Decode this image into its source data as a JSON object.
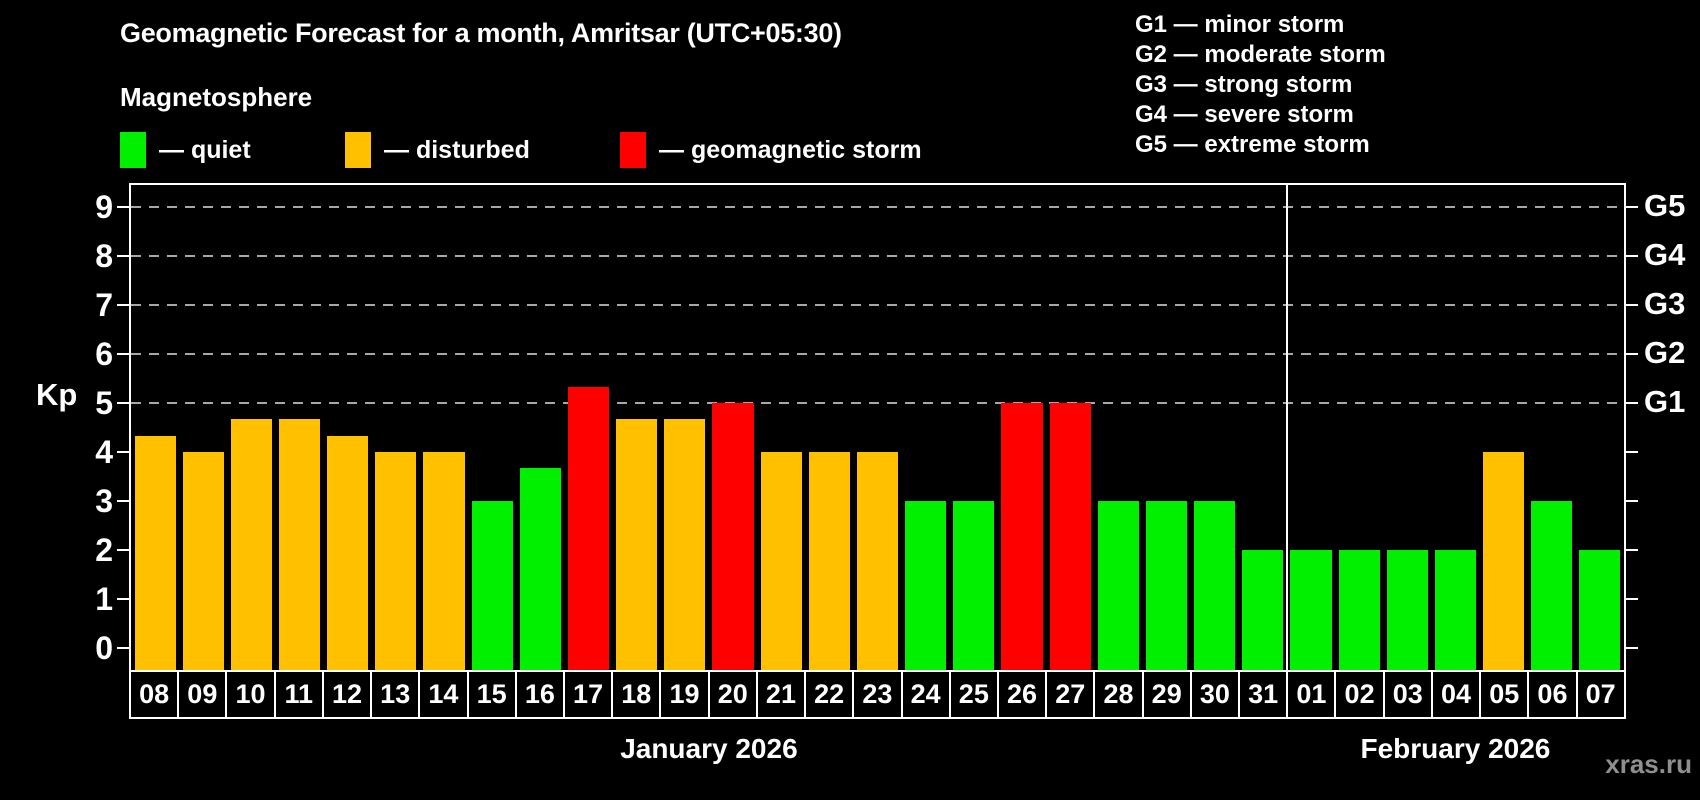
{
  "title": "Geomagnetic Forecast for a month, Amritsar (UTC+05:30)",
  "subtitle": "Magnetosphere",
  "legend": {
    "items": [
      {
        "name": "quiet",
        "label": "— quiet",
        "color": "#00F000"
      },
      {
        "name": "disturbed",
        "label": "— disturbed",
        "color": "#FFC000"
      },
      {
        "name": "geomagnetic-storm",
        "label": "— geomagnetic storm",
        "color": "#FF0000"
      }
    ]
  },
  "g_scale_legend": {
    "items": [
      {
        "label": "G1 — minor storm"
      },
      {
        "label": "G2 — moderate storm"
      },
      {
        "label": "G3 — strong storm"
      },
      {
        "label": "G4 — severe storm"
      },
      {
        "label": "G5 — extreme storm"
      }
    ]
  },
  "watermark": "xras.ru",
  "chart_data": {
    "type": "bar",
    "title": "Geomagnetic Forecast for a month, Amritsar (UTC+05:30)",
    "ylabel": "Kp",
    "ylim": [
      0,
      9.45
    ],
    "yticks": [
      0,
      1,
      2,
      3,
      4,
      5,
      6,
      7,
      8,
      9
    ],
    "grid_levels": [
      5,
      6,
      7,
      8,
      9
    ],
    "grid_style": "dashed",
    "right_axis_labels": [
      {
        "value": 5,
        "label": "G1"
      },
      {
        "value": 6,
        "label": "G2"
      },
      {
        "value": 7,
        "label": "G3"
      },
      {
        "value": 8,
        "label": "G4"
      },
      {
        "value": 9,
        "label": "G5"
      }
    ],
    "categories": [
      "08",
      "09",
      "10",
      "11",
      "12",
      "13",
      "14",
      "15",
      "16",
      "17",
      "18",
      "19",
      "20",
      "21",
      "22",
      "23",
      "24",
      "25",
      "26",
      "27",
      "28",
      "29",
      "30",
      "31",
      "01",
      "02",
      "03",
      "04",
      "05",
      "06",
      "07"
    ],
    "series": [
      {
        "name": "Kp forecast",
        "values": [
          4.33,
          4,
          4.67,
          4.67,
          4.33,
          4,
          4,
          3,
          3.67,
          5.33,
          4.67,
          4.67,
          5,
          4,
          4,
          4,
          3,
          3,
          5,
          5,
          3,
          3,
          3,
          2,
          2,
          2,
          2,
          2,
          4,
          3,
          2
        ]
      }
    ],
    "states": [
      "disturbed",
      "disturbed",
      "disturbed",
      "disturbed",
      "disturbed",
      "disturbed",
      "disturbed",
      "quiet",
      "quiet",
      "storm",
      "disturbed",
      "disturbed",
      "storm",
      "disturbed",
      "disturbed",
      "disturbed",
      "quiet",
      "quiet",
      "storm",
      "storm",
      "quiet",
      "quiet",
      "quiet",
      "quiet",
      "quiet",
      "quiet",
      "quiet",
      "quiet",
      "disturbed",
      "quiet",
      "quiet"
    ],
    "state_colors": {
      "quiet": "#00F000",
      "disturbed": "#FFC000",
      "storm": "#FF0000"
    },
    "sections": [
      {
        "label": "January 2026",
        "count": 24
      },
      {
        "label": "February 2026",
        "count": 7
      }
    ]
  }
}
